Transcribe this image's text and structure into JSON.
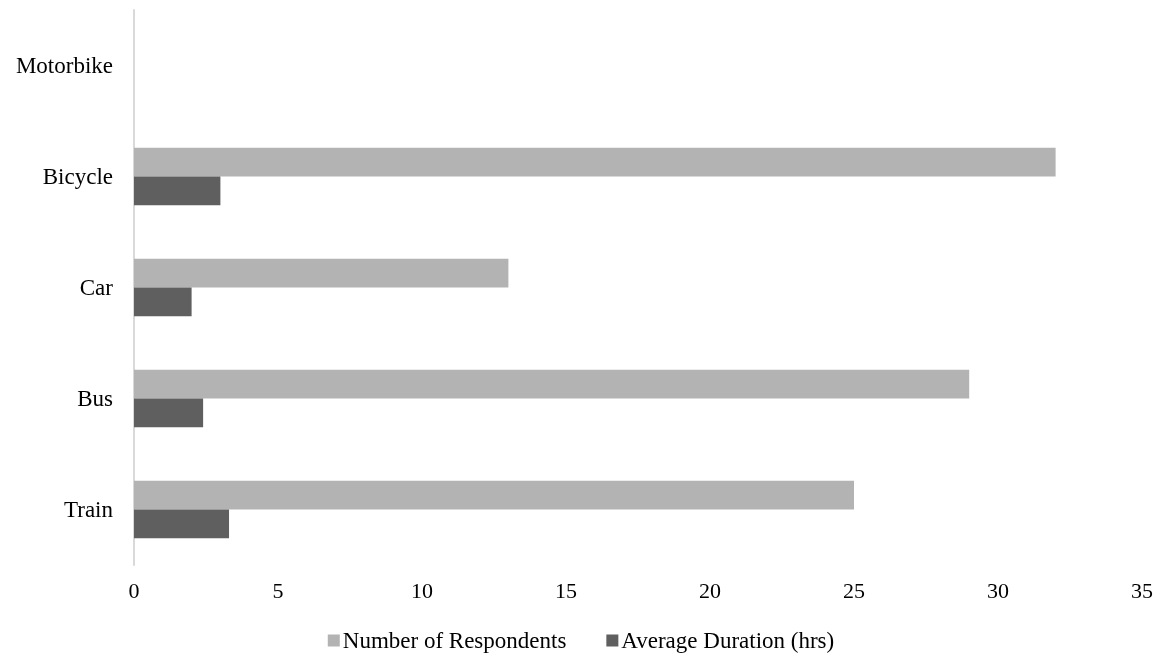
{
  "chart_data": {
    "type": "bar",
    "orientation": "horizontal",
    "categories": [
      "Motorbike",
      "Bicycle",
      "Car",
      "Bus",
      "Train"
    ],
    "series": [
      {
        "name": "Number of Respondents",
        "color": "#b3b3b3",
        "values": [
          0,
          32,
          13,
          29,
          25
        ]
      },
      {
        "name": "Average Duration (hrs)",
        "color": "#5f5f5f",
        "values": [
          0,
          3,
          2,
          2.4,
          3.3
        ]
      }
    ],
    "xlim": [
      0,
      35
    ],
    "xticks": [
      0,
      5,
      10,
      15,
      20,
      25,
      30,
      35
    ],
    "grid": false,
    "legend": "bottom"
  }
}
